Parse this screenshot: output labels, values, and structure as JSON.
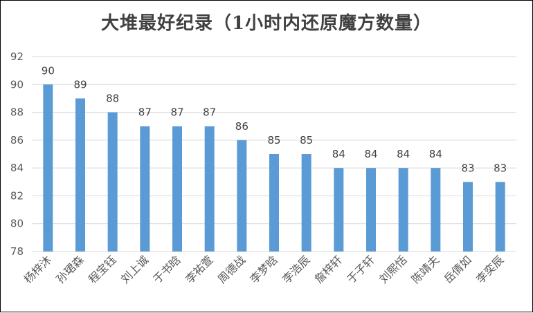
{
  "chart_data": {
    "type": "bar",
    "title": "大堆最好纪录（1小时内还原魔方数量）",
    "categories": [
      "杨梓沐",
      "孙珺森",
      "程宝钰",
      "刘上诚",
      "于书晗",
      "李祐萱",
      "周德战",
      "李梦晗",
      "李浩辰",
      "詹梓轩",
      "于子轩",
      "刘熙恬",
      "陈靖夫",
      "岳倩如",
      "李奕辰"
    ],
    "values": [
      90,
      89,
      88,
      87,
      87,
      87,
      86,
      85,
      85,
      84,
      84,
      84,
      84,
      83,
      83
    ],
    "ylim": [
      78,
      92
    ],
    "yticks": [
      78,
      80,
      82,
      84,
      86,
      88,
      90,
      92
    ],
    "grid": true,
    "bar_color": "#5b9bd5",
    "grid_color": "#d9d9d9"
  }
}
